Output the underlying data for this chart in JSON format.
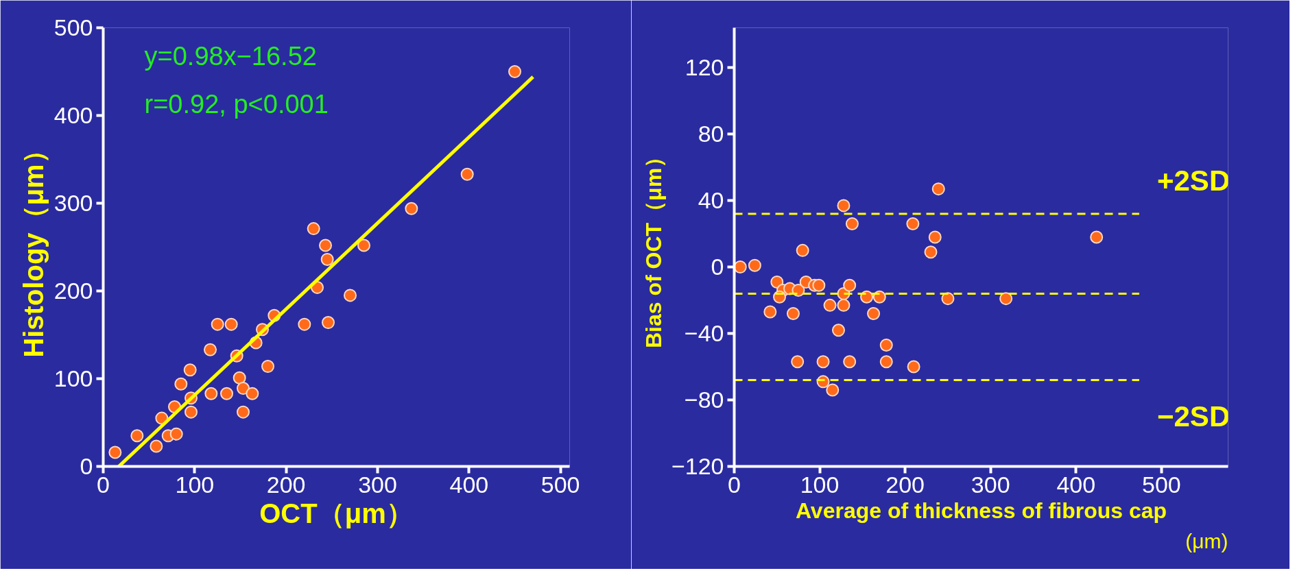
{
  "chart_data": [
    {
      "type": "scatter",
      "xlabel": "OCT（μm）",
      "ylabel": "Histology（μm）",
      "xlim": [
        0,
        510
      ],
      "ylim": [
        0,
        500
      ],
      "xticks": [
        0,
        100,
        200,
        300,
        400,
        500
      ],
      "yticks": [
        0,
        100,
        200,
        300,
        400,
        500
      ],
      "grid": false,
      "marker": "circle",
      "annotations": [
        "y=0.98x−16.52",
        "r=0.92,  p<0.001"
      ],
      "series": [
        {
          "color": "#ff6a1a",
          "x": [
            13,
            37,
            58,
            64,
            71,
            80,
            78,
            85,
            95,
            96,
            96,
            117,
            118,
            125,
            135,
            140,
            146,
            149,
            153,
            153,
            163,
            167,
            174,
            180,
            187,
            220,
            230,
            234,
            243,
            245,
            246,
            270,
            285,
            337,
            398,
            450
          ],
          "values": [
            16,
            35,
            23,
            55,
            35,
            37,
            68,
            94,
            110,
            78,
            62,
            133,
            83,
            162,
            83,
            162,
            126,
            101,
            89,
            62,
            83,
            141,
            156,
            114,
            172,
            162,
            271,
            204,
            252,
            236,
            164,
            195,
            252,
            294,
            333,
            450
          ]
        },
        {
          "type": "line",
          "marker": "none",
          "color": "#ffff00",
          "x": [
            17,
            470
          ],
          "values": [
            0,
            444
          ]
        }
      ]
    },
    {
      "type": "scatter",
      "xlabel": "Average of thickness of fibrous cap",
      "ylabel": "Bias of OCT（μm）",
      "xlim": [
        0,
        578
      ],
      "ylim": [
        -120,
        144
      ],
      "xticks": [
        0,
        100,
        200,
        300,
        400,
        500
      ],
      "yticks": [
        -120,
        -80,
        -40,
        0,
        40,
        80,
        120
      ],
      "grid": false,
      "marker": "circle",
      "annotations": [
        "(μm)"
      ],
      "ref_lines": [
        {
          "axis": "y",
          "value": 32,
          "label": "+2SD",
          "color": "#ffff00",
          "line_style": "dashed"
        },
        {
          "axis": "y",
          "value": -16,
          "label": null,
          "color": "#ffff00",
          "line_style": "dashed"
        },
        {
          "axis": "y",
          "value": -68,
          "label": "−2SD",
          "color": "#ffff00",
          "line_style": "dashed"
        }
      ],
      "series": [
        {
          "color": "#ff6a1a",
          "x": [
            7,
            24,
            50,
            57,
            53,
            65,
            75,
            84,
            94,
            80,
            42,
            69,
            74,
            104,
            104,
            115,
            99,
            112,
            122,
            128,
            128,
            135,
            135,
            155,
            170,
            163,
            178,
            178,
            210,
            128,
            138,
            209,
            230,
            235,
            239,
            250,
            318,
            424
          ],
          "values": [
            0,
            1,
            -9,
            -14,
            -18,
            -13,
            -14,
            -9,
            -11,
            10,
            -27,
            -28,
            -57,
            -57,
            -69,
            -74,
            -11,
            -23,
            -38,
            -16,
            -23,
            -11,
            -57,
            -18,
            -18,
            -28,
            -47,
            -57,
            -60,
            37,
            26,
            26,
            9,
            18,
            47,
            -19,
            -19,
            18
          ]
        }
      ]
    }
  ]
}
